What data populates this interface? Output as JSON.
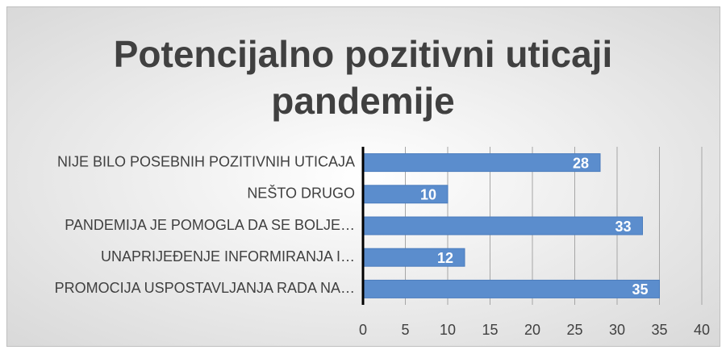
{
  "chart_data": {
    "type": "bar",
    "orientation": "horizontal",
    "title": "Potencijalno pozitivni uticaji pandemije",
    "categories": [
      "NIJE BILO POSEBNIH POZITIVNIH UTICAJA",
      "NEŠTO DRUGO",
      "PANDEMIJA JE POMOGLA DA SE BOLJE…",
      "UNAPRIJEĐENJE INFORMIRANJA I…",
      "PROMOCIJA USPOSTAVLJANJA RADA NA…"
    ],
    "values": [
      28,
      10,
      33,
      12,
      35
    ],
    "color": "#5b8dcd",
    "xlim": [
      0,
      40
    ],
    "xticks": [
      0,
      5,
      10,
      15,
      20,
      25,
      30,
      35,
      40
    ],
    "grid": true
  }
}
